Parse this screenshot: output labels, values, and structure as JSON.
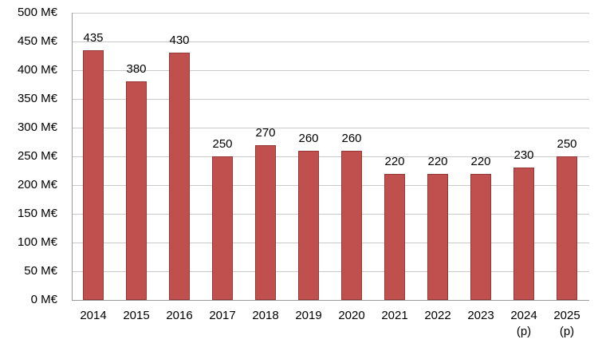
{
  "chart_data": {
    "type": "bar",
    "title": "",
    "xlabel": "",
    "ylabel": "",
    "unit": "M€",
    "categories": [
      "2014",
      "2015",
      "2016",
      "2017",
      "2018",
      "2019",
      "2020",
      "2021",
      "2022",
      "2023",
      "2024\n(p)",
      "2025\n(p)"
    ],
    "values": [
      435,
      380,
      430,
      250,
      270,
      260,
      260,
      220,
      220,
      220,
      230,
      250
    ],
    "ylim": [
      0,
      500
    ],
    "ytick_step": 50,
    "grid": true,
    "legend": false,
    "bar_color": "#C0504D",
    "bar_border_color": "#953735",
    "gridline_color": "#C9C9C9",
    "axis_color": "#9B9B9B",
    "label_color": "#000000"
  }
}
